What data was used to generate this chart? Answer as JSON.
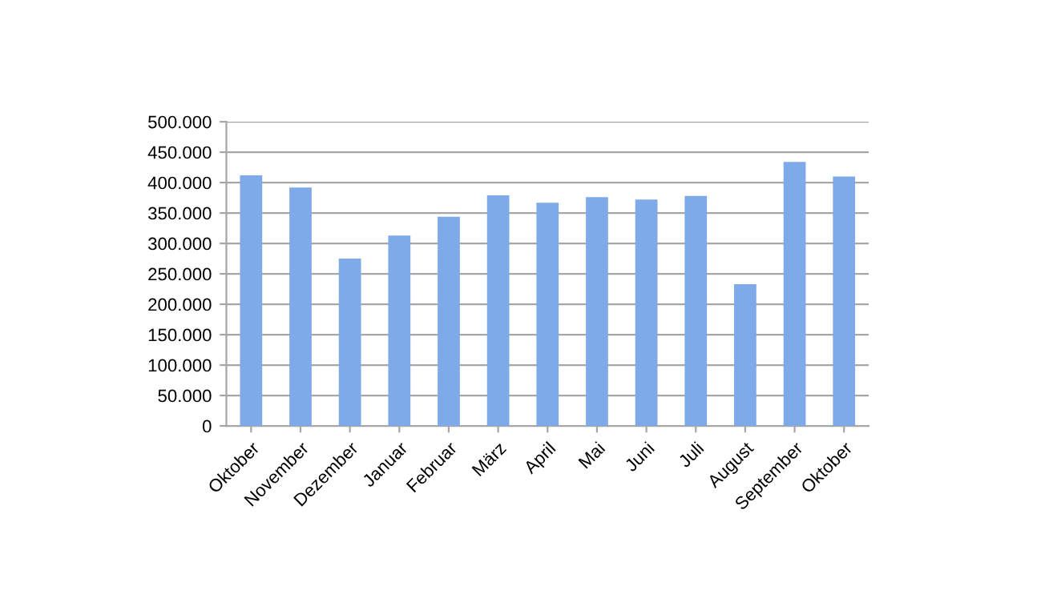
{
  "chart_data": {
    "type": "bar",
    "categories": [
      "Oktober",
      "November",
      "Dezember",
      "Januar",
      "Februar",
      "März",
      "April",
      "Mai",
      "Juni",
      "Juli",
      "August",
      "September",
      "Oktober"
    ],
    "values": [
      412000,
      392000,
      275000,
      313000,
      344000,
      379000,
      367000,
      376000,
      372000,
      378000,
      233000,
      434000,
      410000
    ],
    "color": "#7eaaea",
    "ylim": [
      0,
      500000
    ],
    "yticks": [
      0,
      {
        "value": 50000,
        "label": "50.000"
      },
      {
        "value": 100000,
        "label": "100.000"
      },
      {
        "value": 150000,
        "label": "150.000"
      },
      {
        "value": 200000,
        "label": "200.000"
      },
      {
        "value": 250000,
        "label": "250.000"
      },
      {
        "value": 300000,
        "label": "300.000"
      },
      {
        "value": 350000,
        "label": "350.000"
      },
      {
        "value": 400000,
        "label": "400.000"
      },
      {
        "value": 450000,
        "label": "450.000"
      },
      {
        "value": 500000,
        "label": "500.000"
      }
    ],
    "grid": "y"
  }
}
